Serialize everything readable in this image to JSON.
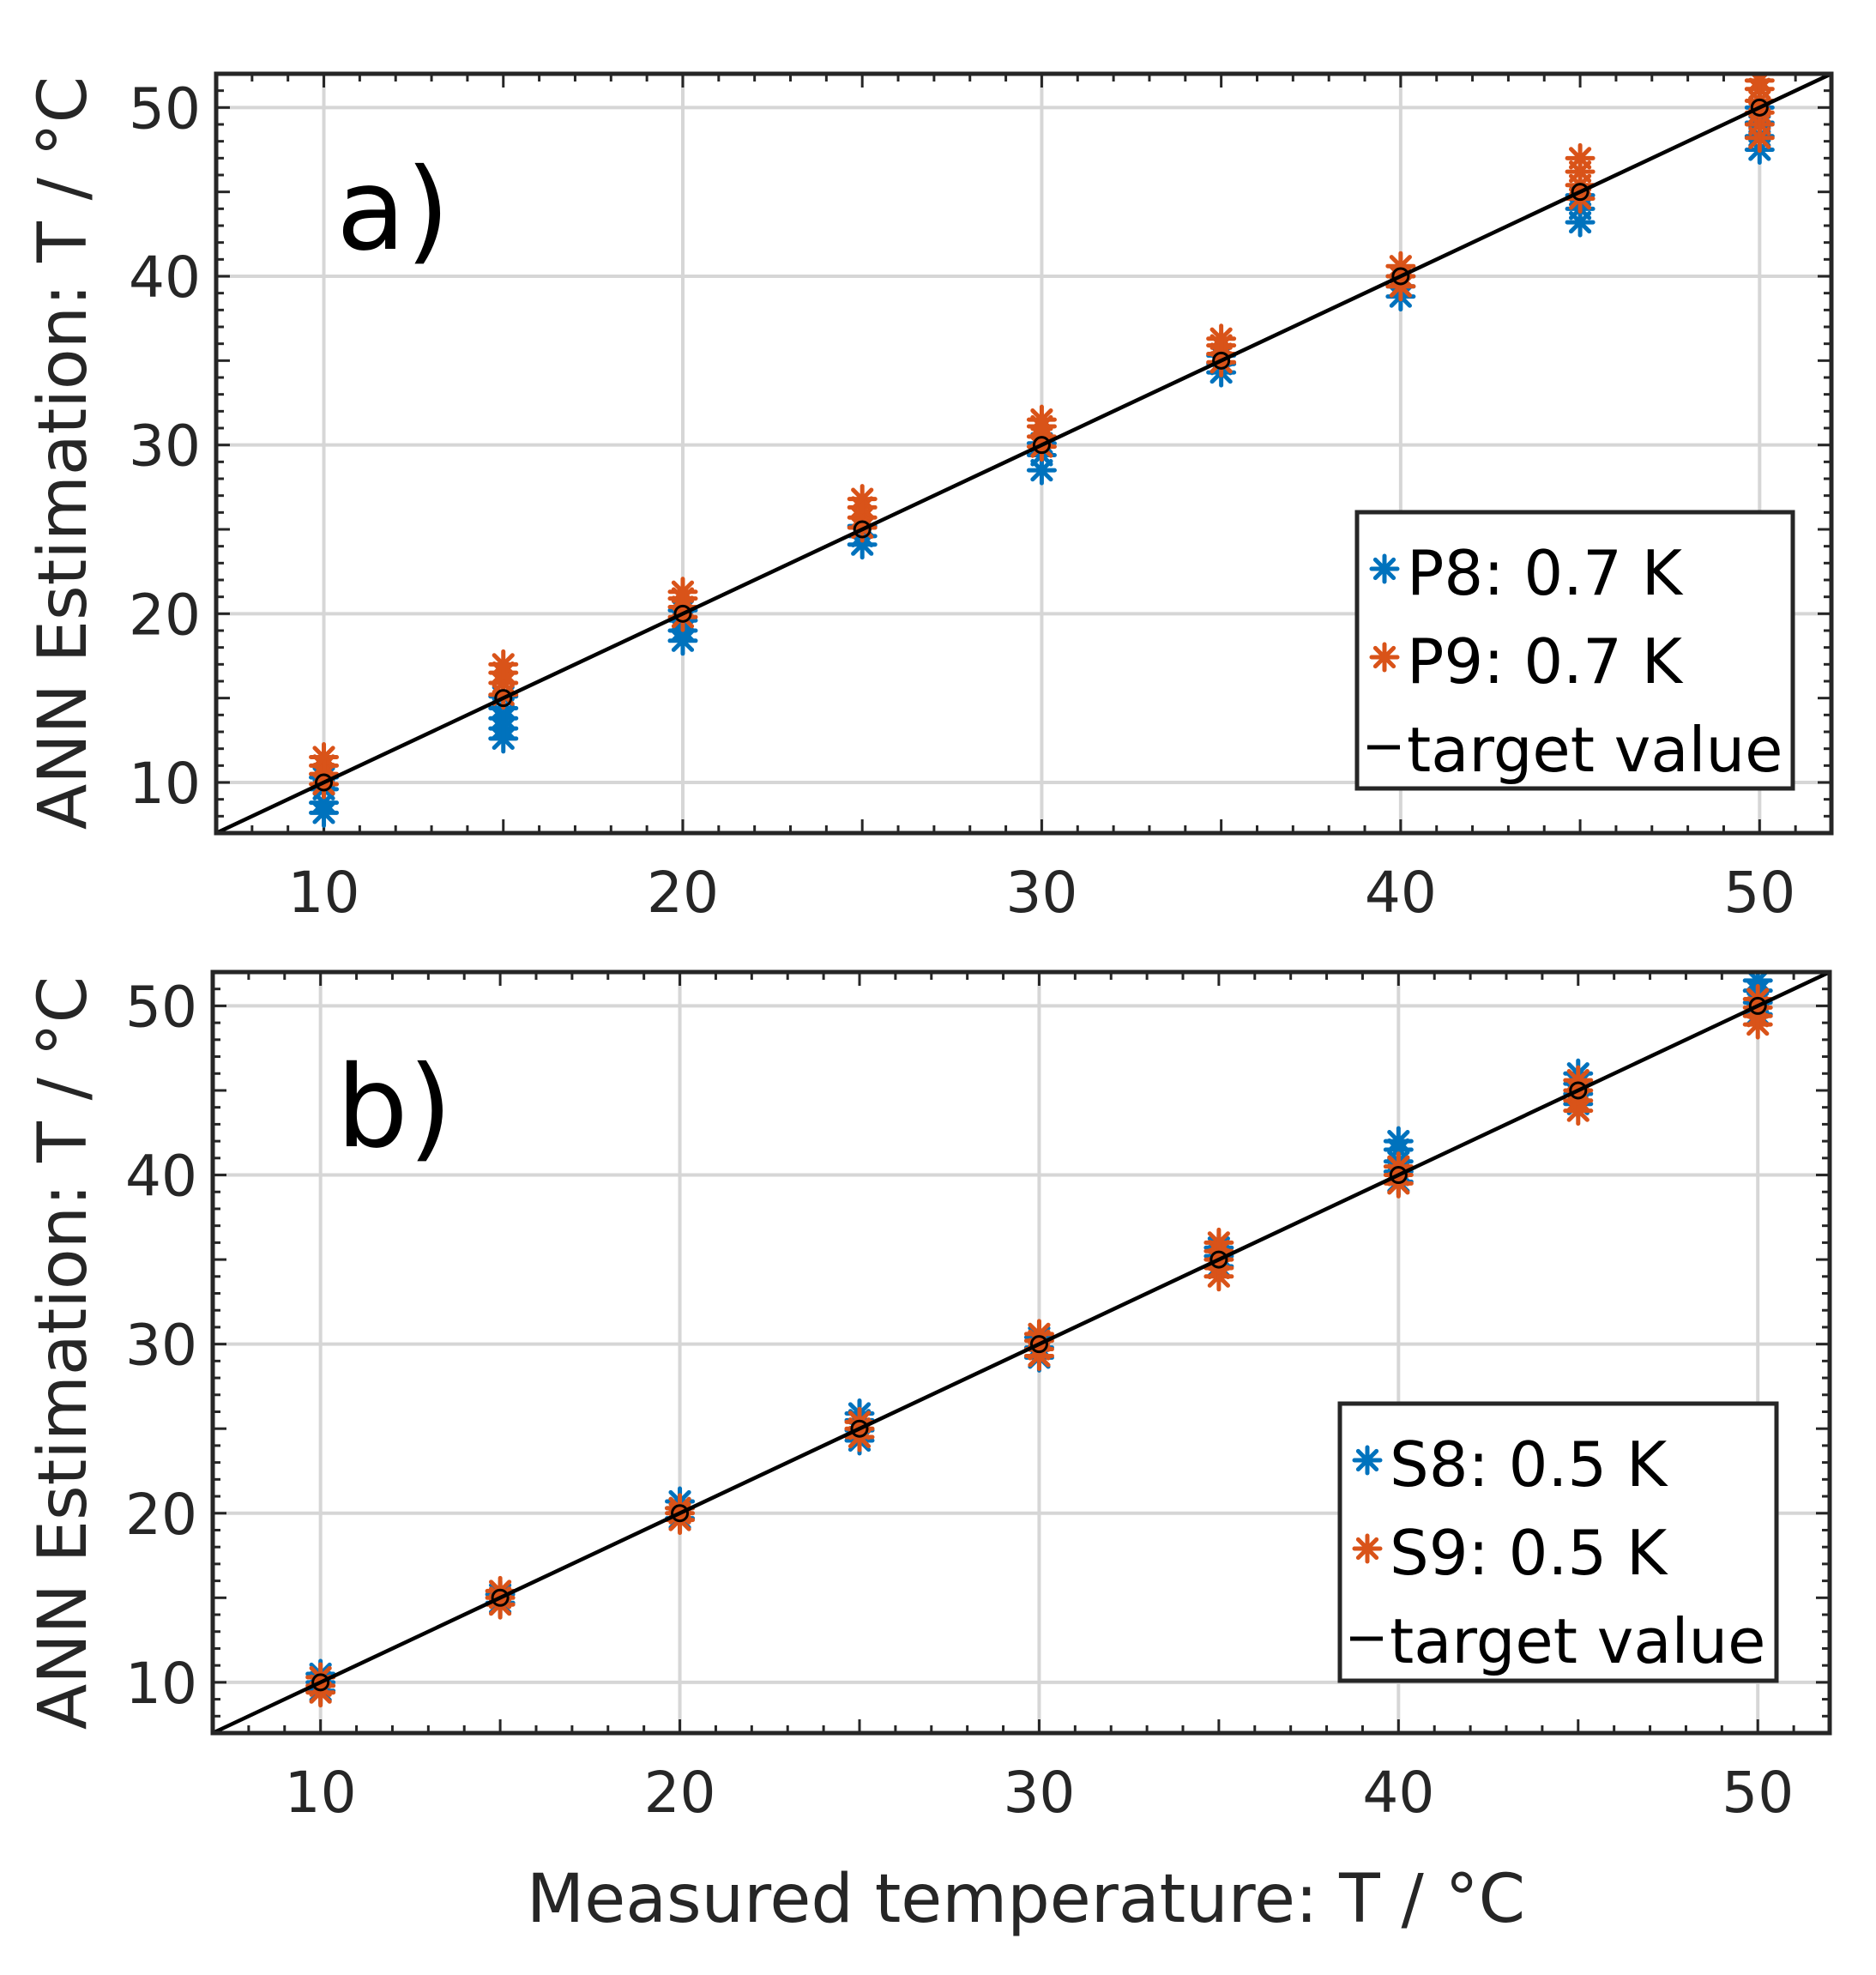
{
  "figure": {
    "ylabel": "ANN Estimation: T / °C",
    "xlabel": "Measured temperature: T / °C"
  },
  "colors": {
    "blue": "#0072BD",
    "orange": "#D95319",
    "line": "#000000"
  },
  "chart_data": [
    {
      "type": "scatter",
      "panel": "a)",
      "xlim": [
        7,
        52
      ],
      "ylim": [
        7,
        52
      ],
      "x_ticks": [
        10,
        20,
        30,
        40,
        50
      ],
      "y_ticks": [
        10,
        20,
        30,
        40,
        50
      ],
      "grid": true,
      "legend_position": "bottom-right",
      "series": [
        {
          "name": "P8: 0.7 K",
          "marker": "asterisk",
          "color": "blue",
          "points": [
            [
              10,
              8.2
            ],
            [
              10,
              8.8
            ],
            [
              10,
              9.6
            ],
            [
              10,
              10.3
            ],
            [
              15,
              12.6
            ],
            [
              15,
              13.2
            ],
            [
              15,
              13.8
            ],
            [
              15,
              14.4
            ],
            [
              15,
              15.1
            ],
            [
              20,
              18.4
            ],
            [
              20,
              19.0
            ],
            [
              20,
              19.6
            ],
            [
              20,
              20.2
            ],
            [
              25,
              24.1
            ],
            [
              25,
              24.6
            ],
            [
              25,
              25.2
            ],
            [
              30,
              28.5
            ],
            [
              30,
              29.4
            ],
            [
              30,
              30.1
            ],
            [
              35,
              34.3
            ],
            [
              35,
              34.8
            ],
            [
              35,
              35.3
            ],
            [
              40,
              38.8
            ],
            [
              40,
              39.4
            ],
            [
              40,
              40.0
            ],
            [
              45,
              43.2
            ],
            [
              45,
              44.0
            ],
            [
              45,
              44.8
            ],
            [
              50,
              47.5
            ],
            [
              50,
              48.3
            ],
            [
              50,
              49.1
            ],
            [
              50,
              50.0
            ]
          ]
        },
        {
          "name": "P9: 0.7 K",
          "marker": "asterisk",
          "color": "orange",
          "points": [
            [
              10,
              9.9
            ],
            [
              10,
              10.5
            ],
            [
              10,
              11.0
            ],
            [
              10,
              11.5
            ],
            [
              15,
              15.2
            ],
            [
              15,
              15.9
            ],
            [
              15,
              16.5
            ],
            [
              15,
              17.0
            ],
            [
              20,
              19.8
            ],
            [
              20,
              20.4
            ],
            [
              20,
              20.9
            ],
            [
              20,
              21.3
            ],
            [
              25,
              25.1
            ],
            [
              25,
              25.7
            ],
            [
              25,
              26.3
            ],
            [
              25,
              26.8
            ],
            [
              30,
              29.9
            ],
            [
              30,
              30.5
            ],
            [
              30,
              31.1
            ],
            [
              30,
              31.5
            ],
            [
              35,
              34.9
            ],
            [
              35,
              35.4
            ],
            [
              35,
              35.9
            ],
            [
              35,
              36.3
            ],
            [
              40,
              39.4
            ],
            [
              40,
              40.0
            ],
            [
              40,
              40.6
            ],
            [
              45,
              44.6
            ],
            [
              45,
              45.4
            ],
            [
              45,
              46.2
            ],
            [
              45,
              47.0
            ],
            [
              50,
              48.2
            ],
            [
              50,
              49.0
            ],
            [
              50,
              49.7
            ],
            [
              50,
              50.4
            ],
            [
              50,
              51.1
            ],
            [
              50,
              51.6
            ]
          ]
        },
        {
          "name": "target value",
          "type": "line",
          "color": "line",
          "x": [
            7,
            52
          ],
          "y": [
            7,
            52
          ],
          "markers": [
            10,
            15,
            20,
            25,
            30,
            35,
            40,
            45,
            50
          ]
        }
      ]
    },
    {
      "type": "scatter",
      "panel": "b)",
      "xlim": [
        7,
        52
      ],
      "ylim": [
        7,
        52
      ],
      "x_ticks": [
        10,
        20,
        30,
        40,
        50
      ],
      "y_ticks": [
        10,
        20,
        30,
        40,
        50
      ],
      "grid": true,
      "legend_position": "bottom-right",
      "series": [
        {
          "name": "S8: 0.5 K",
          "marker": "asterisk",
          "color": "blue",
          "points": [
            [
              10,
              9.5
            ],
            [
              10,
              10.0
            ],
            [
              10,
              10.5
            ],
            [
              15,
              14.7
            ],
            [
              15,
              15.2
            ],
            [
              20,
              19.7
            ],
            [
              20,
              20.3
            ],
            [
              20,
              20.7
            ],
            [
              25,
              24.3
            ],
            [
              25,
              24.9
            ],
            [
              25,
              25.5
            ],
            [
              25,
              25.9
            ],
            [
              30,
              29.2
            ],
            [
              30,
              29.8
            ],
            [
              30,
              30.4
            ],
            [
              35,
              34.6
            ],
            [
              35,
              35.2
            ],
            [
              35,
              35.7
            ],
            [
              40,
              39.6
            ],
            [
              40,
              40.2
            ],
            [
              40,
              40.8
            ],
            [
              40,
              41.5
            ],
            [
              40,
              42.0
            ],
            [
              45,
              44.2
            ],
            [
              45,
              44.8
            ],
            [
              45,
              45.4
            ],
            [
              45,
              46.0
            ],
            [
              50,
              49.5
            ],
            [
              50,
              50.2
            ],
            [
              50,
              50.9
            ],
            [
              50,
              51.5
            ]
          ]
        },
        {
          "name": "S9: 0.5 K",
          "marker": "asterisk",
          "color": "orange",
          "points": [
            [
              10,
              9.4
            ],
            [
              10,
              9.8
            ],
            [
              10,
              10.3
            ],
            [
              15,
              14.6
            ],
            [
              15,
              15.0
            ],
            [
              15,
              15.4
            ],
            [
              20,
              19.6
            ],
            [
              20,
              20.0
            ],
            [
              20,
              20.3
            ],
            [
              25,
              24.5
            ],
            [
              25,
              25.0
            ],
            [
              25,
              25.4
            ],
            [
              30,
              29.3
            ],
            [
              30,
              29.7
            ],
            [
              30,
              30.2
            ],
            [
              30,
              30.6
            ],
            [
              35,
              34.0
            ],
            [
              35,
              34.5
            ],
            [
              35,
              35.0
            ],
            [
              35,
              35.5
            ],
            [
              35,
              36.0
            ],
            [
              40,
              39.5
            ],
            [
              40,
              40.0
            ],
            [
              40,
              40.5
            ],
            [
              45,
              43.8
            ],
            [
              45,
              44.4
            ],
            [
              45,
              45.0
            ],
            [
              45,
              45.6
            ],
            [
              50,
              48.9
            ],
            [
              50,
              49.4
            ],
            [
              50,
              49.9
            ],
            [
              50,
              50.4
            ]
          ]
        },
        {
          "name": "target value",
          "type": "line",
          "color": "line",
          "x": [
            7,
            52
          ],
          "y": [
            7,
            52
          ],
          "markers": [
            10,
            15,
            20,
            25,
            30,
            35,
            40,
            45,
            50
          ]
        }
      ]
    }
  ]
}
